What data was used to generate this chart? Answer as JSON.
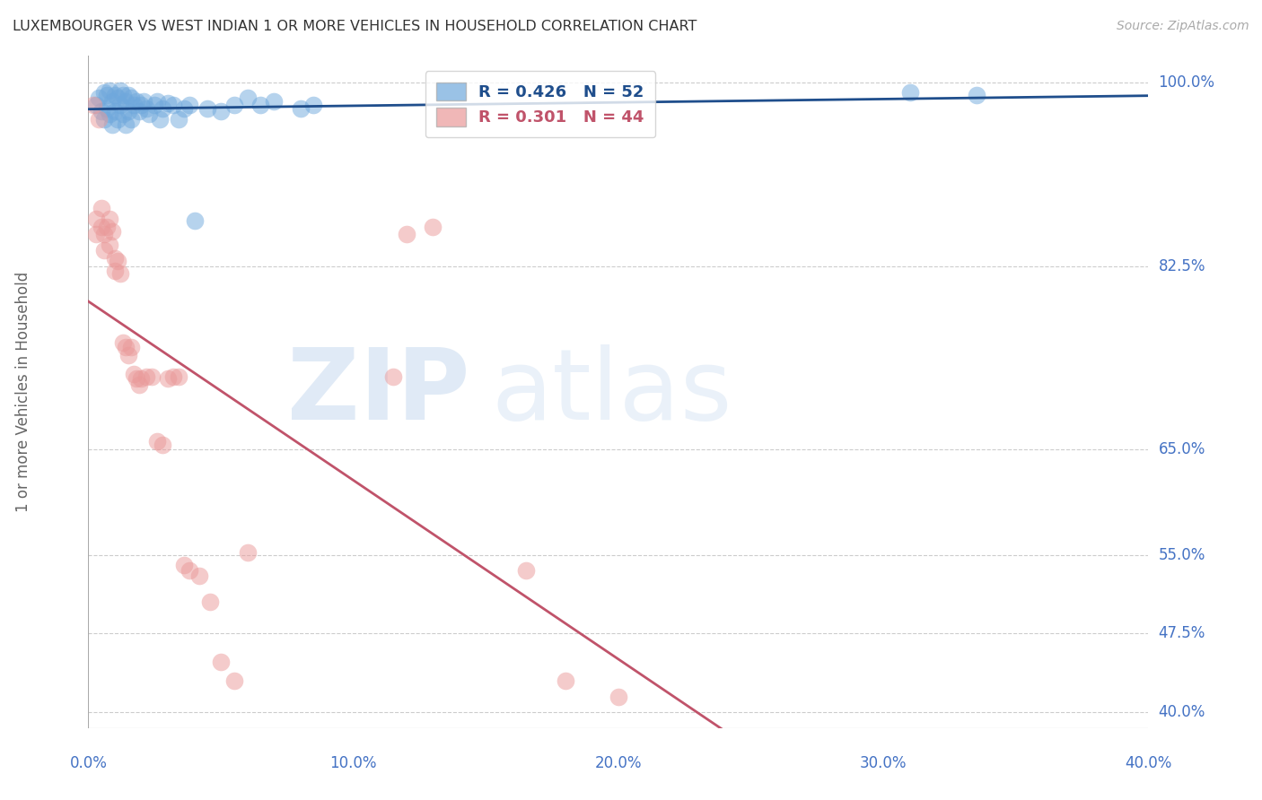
{
  "title": "LUXEMBOURGER VS WEST INDIAN 1 OR MORE VEHICLES IN HOUSEHOLD CORRELATION CHART",
  "source": "Source: ZipAtlas.com",
  "ylabel": "1 or more Vehicles in Household",
  "blue_R": 0.426,
  "blue_N": 52,
  "pink_R": 0.301,
  "pink_N": 44,
  "blue_color": "#6fa8dc",
  "pink_color": "#ea9999",
  "blue_line_color": "#1f4e8c",
  "pink_line_color": "#c0536a",
  "xlim": [
    0.0,
    0.4
  ],
  "ylim": [
    0.385,
    1.025
  ],
  "ytick_positions": [
    0.4,
    0.475,
    0.55,
    0.65,
    0.825,
    1.0
  ],
  "ytick_labels": [
    "40.0%",
    "47.5%",
    "55.0%",
    "65.0%",
    "82.5%",
    "100.0%"
  ],
  "xtick_positions": [
    0.0,
    0.1,
    0.2,
    0.3,
    0.4
  ],
  "xtick_labels": [
    "0.0%",
    "10.0%",
    "20.0%",
    "30.0%",
    "40.0%"
  ],
  "background_color": "#ffffff",
  "grid_color": "#cccccc",
  "blue_points_x": [
    0.003,
    0.004,
    0.005,
    0.006,
    0.006,
    0.007,
    0.007,
    0.008,
    0.008,
    0.009,
    0.009,
    0.01,
    0.01,
    0.011,
    0.011,
    0.012,
    0.012,
    0.013,
    0.013,
    0.014,
    0.014,
    0.015,
    0.015,
    0.016,
    0.016,
    0.017,
    0.018,
    0.019,
    0.02,
    0.021,
    0.022,
    0.023,
    0.025,
    0.026,
    0.027,
    0.028,
    0.03,
    0.032,
    0.034,
    0.036,
    0.038,
    0.04,
    0.045,
    0.05,
    0.055,
    0.06,
    0.065,
    0.07,
    0.08,
    0.085,
    0.31,
    0.335
  ],
  "blue_points_y": [
    0.978,
    0.985,
    0.972,
    0.99,
    0.965,
    0.988,
    0.975,
    0.992,
    0.97,
    0.982,
    0.96,
    0.988,
    0.972,
    0.985,
    0.965,
    0.992,
    0.978,
    0.988,
    0.97,
    0.982,
    0.96,
    0.988,
    0.972,
    0.985,
    0.965,
    0.978,
    0.982,
    0.972,
    0.978,
    0.982,
    0.975,
    0.97,
    0.978,
    0.982,
    0.965,
    0.975,
    0.98,
    0.978,
    0.965,
    0.975,
    0.978,
    0.868,
    0.975,
    0.972,
    0.978,
    0.985,
    0.978,
    0.982,
    0.975,
    0.978,
    0.99,
    0.988
  ],
  "pink_points_x": [
    0.002,
    0.003,
    0.003,
    0.004,
    0.005,
    0.005,
    0.006,
    0.006,
    0.007,
    0.008,
    0.008,
    0.009,
    0.01,
    0.01,
    0.011,
    0.012,
    0.013,
    0.014,
    0.015,
    0.016,
    0.017,
    0.018,
    0.019,
    0.02,
    0.022,
    0.024,
    0.026,
    0.028,
    0.03,
    0.032,
    0.034,
    0.036,
    0.038,
    0.042,
    0.046,
    0.05,
    0.055,
    0.06,
    0.115,
    0.12,
    0.13,
    0.165,
    0.18,
    0.2
  ],
  "pink_points_y": [
    0.978,
    0.87,
    0.855,
    0.965,
    0.88,
    0.862,
    0.855,
    0.84,
    0.862,
    0.87,
    0.845,
    0.858,
    0.832,
    0.82,
    0.83,
    0.818,
    0.752,
    0.748,
    0.74,
    0.748,
    0.722,
    0.718,
    0.712,
    0.718,
    0.72,
    0.72,
    0.658,
    0.655,
    0.718,
    0.72,
    0.72,
    0.54,
    0.535,
    0.53,
    0.505,
    0.448,
    0.43,
    0.552,
    0.72,
    0.855,
    0.862,
    0.535,
    0.43,
    0.415
  ],
  "axis_label_color": "#4472c4"
}
